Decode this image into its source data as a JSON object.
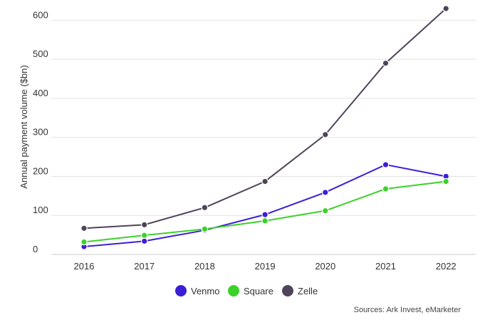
{
  "chart_data": {
    "type": "line",
    "x": [
      "2016",
      "2017",
      "2018",
      "2019",
      "2020",
      "2021",
      "2022"
    ],
    "series": [
      {
        "name": "Venmo",
        "color": "#3a1fd6",
        "values": [
          20,
          34,
          62,
          102,
          159,
          230,
          200
        ]
      },
      {
        "name": "Square",
        "color": "#3cd12a",
        "values": [
          32,
          49,
          65,
          86,
          112,
          168,
          187
        ]
      },
      {
        "name": "Zelle",
        "color": "#4f4459",
        "values": [
          67,
          76,
          120,
          187,
          307,
          490,
          630
        ]
      }
    ],
    "yticks": [
      "0",
      "100",
      "200",
      "300",
      "400",
      "500",
      "600"
    ],
    "ylim": [
      0,
      630
    ],
    "ylabel": "Annual payment volume ($bn)",
    "xlabel": "",
    "title": "",
    "grid": true,
    "legend": "bottom-center",
    "source": "Sources: Ark Invest, eMarketer"
  }
}
